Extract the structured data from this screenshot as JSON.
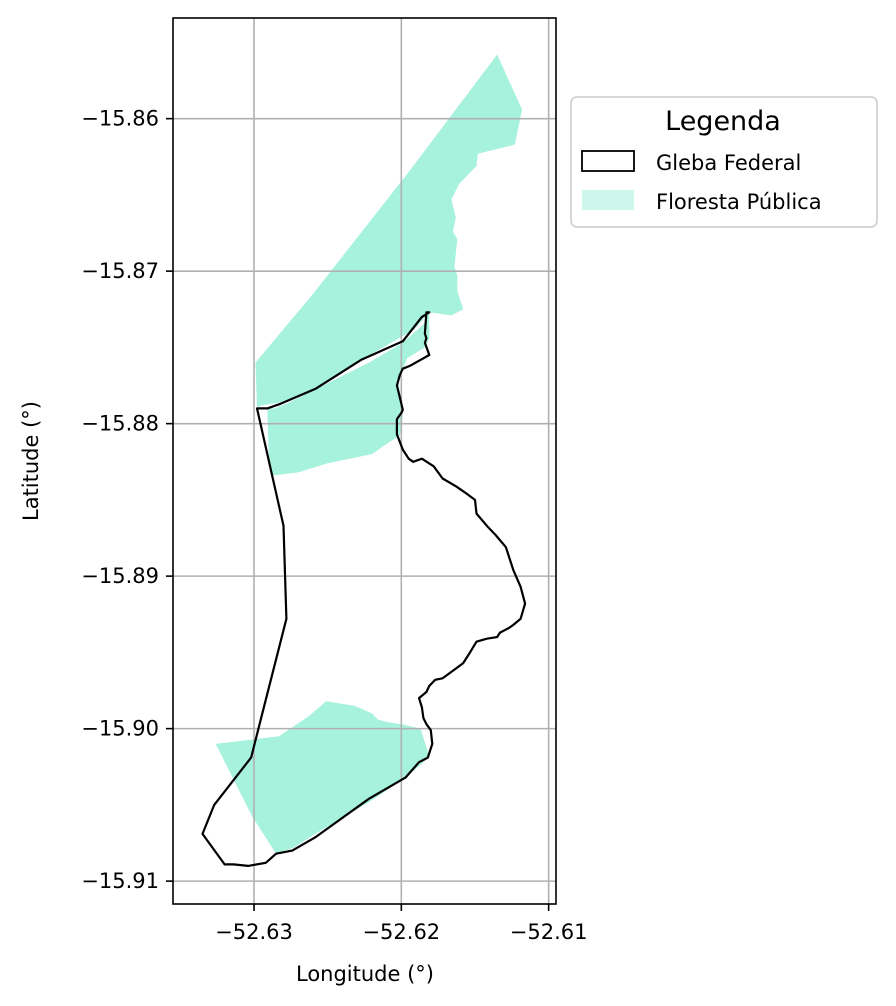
{
  "chart_data": {
    "type": "map",
    "xlabel": "Longitude (°)",
    "ylabel": "Latitude (°)",
    "xlim": [
      -52.6355,
      -52.6095
    ],
    "ylim": [
      -15.9115,
      -15.8534
    ],
    "grid": true,
    "x_ticks": [
      -52.63,
      -52.62,
      -52.61
    ],
    "x_tick_labels": [
      "−52.63",
      "−52.62",
      "−52.61"
    ],
    "y_ticks": [
      -15.86,
      -15.87,
      -15.88,
      -15.89,
      -15.9,
      -15.91
    ],
    "y_tick_labels": [
      "−15.86",
      "−15.87",
      "−15.88",
      "−15.89",
      "−15.90",
      "−15.91"
    ],
    "legend": {
      "title": "Legenda",
      "placement": "outside-right-top",
      "entries": [
        {
          "label": "Gleba Federal",
          "style": "outline",
          "color": "#000000"
        },
        {
          "label": "Floresta Pública",
          "style": "fill",
          "color": "#a6f2dc"
        }
      ]
    },
    "layers": [
      {
        "name": "Floresta Pública",
        "fill": "#a6f2dc",
        "polygons": [
          [
            [
              -52.6135,
              -15.8558
            ],
            [
              -52.6118,
              -15.8594
            ],
            [
              -52.6123,
              -15.8617
            ],
            [
              -52.6148,
              -15.8623
            ],
            [
              -52.6149,
              -15.8631
            ],
            [
              -52.6161,
              -15.8643
            ],
            [
              -52.6166,
              -15.8653
            ],
            [
              -52.6163,
              -15.8665
            ],
            [
              -52.6165,
              -15.8674
            ],
            [
              -52.6162,
              -15.8679
            ],
            [
              -52.6164,
              -15.8697
            ],
            [
              -52.6162,
              -15.8703
            ],
            [
              -52.6162,
              -15.8713
            ],
            [
              -52.6158,
              -15.8725
            ],
            [
              -52.6166,
              -15.8729
            ],
            [
              -52.6181,
              -15.8727
            ],
            [
              -52.6191,
              -15.8738
            ],
            [
              -52.6223,
              -15.8756
            ],
            [
              -52.6258,
              -15.8777
            ],
            [
              -52.6282,
              -15.8786
            ],
            [
              -52.6294,
              -15.8788
            ],
            [
              -52.6298,
              -15.8789
            ],
            [
              -52.6299,
              -15.876
            ],
            [
              -52.626,
              -15.8715
            ],
            [
              -52.6195,
              -15.8635
            ]
          ],
          [
            [
              -52.6181,
              -15.8727
            ],
            [
              -52.6181,
              -15.8744
            ],
            [
              -52.6184,
              -15.875
            ],
            [
              -52.6196,
              -15.8757
            ],
            [
              -52.6202,
              -15.8772
            ],
            [
              -52.6199,
              -15.8795
            ],
            [
              -52.6201,
              -15.8808
            ],
            [
              -52.6208,
              -15.8812
            ],
            [
              -52.622,
              -15.882
            ],
            [
              -52.625,
              -15.8826
            ],
            [
              -52.627,
              -15.8832
            ],
            [
              -52.6288,
              -15.8834
            ],
            [
              -52.629,
              -15.8823
            ],
            [
              -52.6291,
              -15.879
            ],
            [
              -52.6286,
              -15.879
            ],
            [
              -52.6278,
              -15.8787
            ],
            [
              -52.6255,
              -15.8776
            ],
            [
              -52.6222,
              -15.876
            ],
            [
              -52.6199,
              -15.8747
            ],
            [
              -52.6185,
              -15.8735
            ]
          ],
          [
            [
              -52.6326,
              -15.901
            ],
            [
              -52.6301,
              -15.9058
            ],
            [
              -52.6285,
              -15.9082
            ],
            [
              -52.6273,
              -15.9078
            ],
            [
              -52.626,
              -15.907
            ],
            [
              -52.622,
              -15.9047
            ],
            [
              -52.6197,
              -15.9032
            ],
            [
              -52.6185,
              -15.9022
            ],
            [
              -52.6181,
              -15.9018
            ],
            [
              -52.6187,
              -15.9
            ],
            [
              -52.62,
              -15.8997
            ],
            [
              -52.6208,
              -15.8996
            ],
            [
              -52.6216,
              -15.8994
            ],
            [
              -52.622,
              -15.899
            ],
            [
              -52.6227,
              -15.8987
            ],
            [
              -52.6232,
              -15.8985
            ],
            [
              -52.6251,
              -15.8982
            ],
            [
              -52.6263,
              -15.8992
            ],
            [
              -52.6283,
              -15.9005
            ]
          ]
        ]
      },
      {
        "name": "Gleba Federal",
        "stroke": "#000000",
        "polygons": [
          [
            [
              -52.6181,
              -15.8727
            ],
            [
              -52.6183,
              -15.8727
            ],
            [
              -52.6184,
              -15.8741
            ],
            [
              -52.6183,
              -15.8744
            ],
            [
              -52.6184,
              -15.8747
            ],
            [
              -52.6181,
              -15.8755
            ],
            [
              -52.6194,
              -15.8762
            ],
            [
              -52.6199,
              -15.8764
            ],
            [
              -52.6201,
              -15.8768
            ],
            [
              -52.6203,
              -15.8775
            ],
            [
              -52.6201,
              -15.8783
            ],
            [
              -52.6199,
              -15.8791
            ],
            [
              -52.62,
              -15.8793
            ],
            [
              -52.6203,
              -15.8797
            ],
            [
              -52.6203,
              -15.8807
            ],
            [
              -52.6199,
              -15.8817
            ],
            [
              -52.6195,
              -15.8823
            ],
            [
              -52.6192,
              -15.8825
            ],
            [
              -52.6186,
              -15.8823
            ],
            [
              -52.6178,
              -15.8828
            ],
            [
              -52.6172,
              -15.8836
            ],
            [
              -52.6163,
              -15.8841
            ],
            [
              -52.6157,
              -15.8845
            ],
            [
              -52.615,
              -15.885
            ],
            [
              -52.6149,
              -15.8859
            ],
            [
              -52.6141,
              -15.8868
            ],
            [
              -52.6136,
              -15.8873
            ],
            [
              -52.6129,
              -15.8881
            ],
            [
              -52.6124,
              -15.8896
            ],
            [
              -52.6119,
              -15.8907
            ],
            [
              -52.6116,
              -15.8918
            ],
            [
              -52.6119,
              -15.8928
            ],
            [
              -52.6124,
              -15.8932
            ],
            [
              -52.6127,
              -15.8934
            ],
            [
              -52.6133,
              -15.8937
            ],
            [
              -52.6135,
              -15.894
            ],
            [
              -52.6142,
              -15.8941
            ],
            [
              -52.6149,
              -15.8943
            ],
            [
              -52.6154,
              -15.8951
            ],
            [
              -52.6158,
              -15.8957
            ],
            [
              -52.6165,
              -15.8962
            ],
            [
              -52.6172,
              -15.8967
            ],
            [
              -52.6177,
              -15.8968
            ],
            [
              -52.6181,
              -15.8972
            ],
            [
              -52.6183,
              -15.8976
            ],
            [
              -52.6188,
              -15.898
            ],
            [
              -52.6186,
              -15.8986
            ],
            [
              -52.6185,
              -15.8993
            ],
            [
              -52.6183,
              -15.8997
            ],
            [
              -52.618,
              -15.9001
            ],
            [
              -52.6179,
              -15.901
            ],
            [
              -52.6182,
              -15.9019
            ],
            [
              -52.6188,
              -15.9022
            ],
            [
              -52.6197,
              -15.9032
            ],
            [
              -52.6222,
              -15.9046
            ],
            [
              -52.6258,
              -15.9071
            ],
            [
              -52.6274,
              -15.908
            ],
            [
              -52.6285,
              -15.9082
            ],
            [
              -52.6292,
              -15.9088
            ],
            [
              -52.6304,
              -15.909
            ],
            [
              -52.6314,
              -15.9089
            ],
            [
              -52.632,
              -15.9089
            ],
            [
              -52.6335,
              -15.9069
            ],
            [
              -52.6327,
              -15.905
            ],
            [
              -52.6302,
              -15.9019
            ],
            [
              -52.6292,
              -15.8981
            ],
            [
              -52.6278,
              -15.8928
            ],
            [
              -52.628,
              -15.8867
            ],
            [
              -52.6298,
              -15.879
            ],
            [
              -52.6291,
              -15.879
            ],
            [
              -52.6282,
              -15.8787
            ],
            [
              -52.6258,
              -15.8777
            ],
            [
              -52.6227,
              -15.8758
            ],
            [
              -52.6199,
              -15.8746
            ],
            [
              -52.6186,
              -15.873
            ]
          ]
        ]
      }
    ]
  }
}
